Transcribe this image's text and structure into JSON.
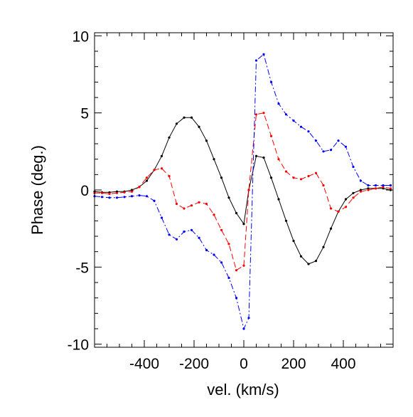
{
  "chart_data": {
    "type": "line",
    "title": "",
    "xlabel": "vel. (km/s)",
    "ylabel": "Phase (deg.)",
    "xlim": [
      -600,
      600
    ],
    "ylim": [
      -10.2,
      10.2
    ],
    "xticks": [
      -400,
      -200,
      0,
      200,
      400
    ],
    "xtick_labels": [
      "-400",
      "-200",
      "0",
      "200",
      "400"
    ],
    "yticks": [
      -10,
      -5,
      0,
      5,
      10
    ],
    "ytick_labels": [
      "-10",
      "-5",
      "0",
      "5",
      "10"
    ],
    "grid": false,
    "legend": "none",
    "series": [
      {
        "color": "#000000",
        "linestyle": "solid",
        "x": [
          -600,
          -570,
          -540,
          -510,
          -480,
          -450,
          -420,
          -390,
          -360,
          -330,
          -300,
          -270,
          -240,
          -210,
          -180,
          -150,
          -120,
          -90,
          -60,
          -30,
          0,
          20,
          50,
          80,
          110,
          140,
          170,
          200,
          230,
          260,
          290,
          320,
          350,
          380,
          410,
          440,
          470,
          500,
          530,
          560,
          590
        ],
        "y": [
          -0.1,
          -0.15,
          -0.15,
          -0.1,
          -0.1,
          0.0,
          0.2,
          0.6,
          1.3,
          2.2,
          3.4,
          4.3,
          4.7,
          4.7,
          4.1,
          3.2,
          2.0,
          0.8,
          -0.5,
          -1.5,
          -2.2,
          0.0,
          2.2,
          2.1,
          0.8,
          -0.6,
          -2.0,
          -3.3,
          -4.3,
          -4.8,
          -4.6,
          -3.7,
          -2.5,
          -1.4,
          -0.6,
          -0.2,
          0.0,
          0.1,
          0.1,
          0.1,
          0.0
        ]
      },
      {
        "color": "#ff0000",
        "linestyle": "dashed",
        "x": [
          -600,
          -570,
          -540,
          -510,
          -480,
          -450,
          -420,
          -390,
          -360,
          -330,
          -300,
          -270,
          -240,
          -210,
          -180,
          -150,
          -120,
          -90,
          -60,
          -30,
          0,
          20,
          50,
          80,
          110,
          140,
          170,
          200,
          230,
          260,
          290,
          320,
          350,
          380,
          410,
          440,
          470,
          500,
          530,
          560,
          590
        ],
        "y": [
          -0.2,
          -0.2,
          -0.25,
          -0.2,
          -0.15,
          -0.1,
          0.2,
          0.8,
          1.3,
          1.4,
          0.9,
          -0.9,
          -1.2,
          -1.0,
          -0.8,
          -0.9,
          -1.6,
          -2.6,
          -3.5,
          -5.2,
          -4.9,
          0.0,
          4.9,
          5.0,
          3.5,
          2.0,
          1.2,
          0.8,
          0.7,
          0.9,
          1.1,
          0.3,
          -1.2,
          -1.4,
          -1.1,
          -0.5,
          -0.1,
          0.0,
          0.1,
          0.2,
          0.1
        ]
      },
      {
        "color": "#0000ff",
        "linestyle": "dashdot",
        "x": [
          -600,
          -570,
          -540,
          -510,
          -480,
          -450,
          -420,
          -390,
          -360,
          -330,
          -300,
          -270,
          -240,
          -210,
          -180,
          -150,
          -120,
          -90,
          -60,
          -30,
          0,
          20,
          50,
          80,
          110,
          140,
          170,
          200,
          230,
          260,
          290,
          320,
          350,
          380,
          410,
          440,
          470,
          500,
          530,
          560,
          590
        ],
        "y": [
          -0.4,
          -0.45,
          -0.5,
          -0.5,
          -0.45,
          -0.4,
          -0.35,
          -0.4,
          -0.7,
          -1.8,
          -2.9,
          -3.2,
          -2.7,
          -2.6,
          -3.1,
          -3.9,
          -4.2,
          -4.7,
          -5.7,
          -7.0,
          -9.0,
          -8.3,
          8.4,
          8.8,
          7.0,
          5.6,
          4.9,
          4.5,
          4.1,
          3.8,
          3.2,
          2.5,
          2.6,
          3.2,
          2.8,
          1.5,
          0.6,
          0.3,
          0.3,
          0.3,
          0.3
        ]
      }
    ]
  }
}
